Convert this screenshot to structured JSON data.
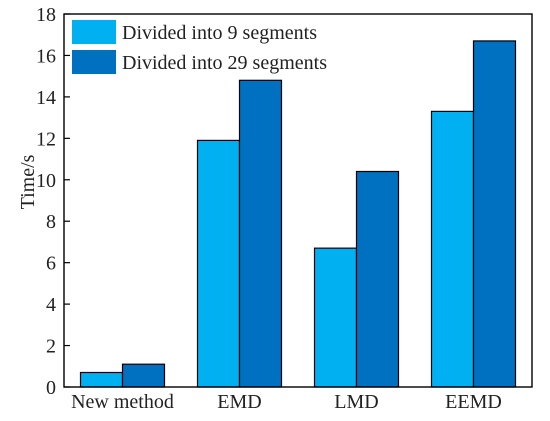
{
  "chart_data": {
    "type": "bar",
    "title": "",
    "xlabel": "",
    "ylabel": "Time/s",
    "categories": [
      "New method",
      "EMD",
      "LMD",
      "EEMD"
    ],
    "series": [
      {
        "name": "Divided into 9 segments",
        "values": [
          0.7,
          11.9,
          6.7,
          13.3
        ],
        "color": "#00b0f0"
      },
      {
        "name": "Divided into 29 segments",
        "values": [
          1.1,
          14.8,
          10.4,
          16.7
        ],
        "color": "#0070c0"
      }
    ],
    "ylim": [
      0,
      18
    ],
    "yticks": [
      0,
      2,
      4,
      6,
      8,
      10,
      12,
      14,
      16,
      18
    ],
    "grid": false,
    "legend_position": "top-left"
  }
}
